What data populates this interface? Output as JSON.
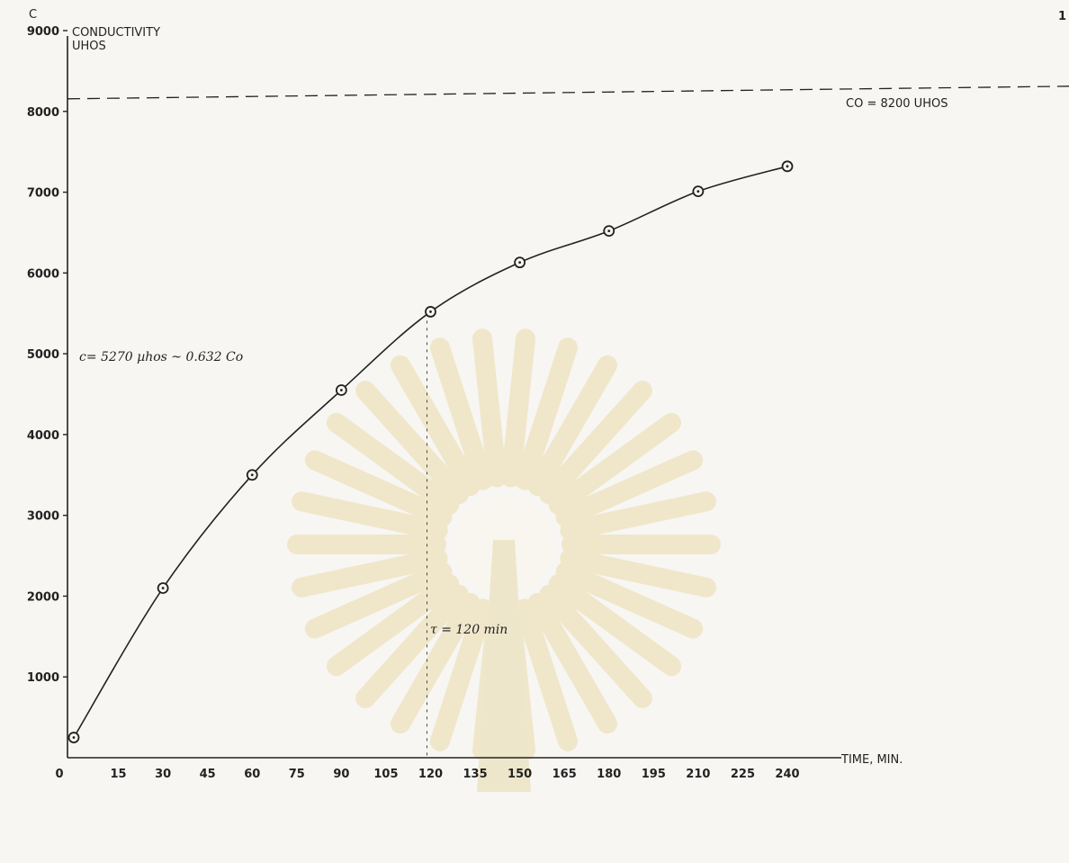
{
  "chart_data": {
    "type": "line",
    "y_symbol": "C",
    "ylabel_line1": "CONDUCTIVITY",
    "ylabel_line2": "UHOS",
    "xlabel": "TIME, MIN.",
    "x_ticks": [
      0,
      15,
      30,
      45,
      60,
      75,
      90,
      105,
      120,
      135,
      150,
      165,
      180,
      195,
      210,
      225,
      240
    ],
    "y_ticks": [
      1000,
      2000,
      3000,
      4000,
      5000,
      6000,
      7000,
      8000,
      9000
    ],
    "xlim": [
      0,
      240
    ],
    "ylim": [
      0,
      9000
    ],
    "grid": false,
    "series": [
      {
        "x": [
          0,
          30,
          60,
          90,
          120,
          150,
          180,
          210,
          240
        ],
        "y": [
          250,
          2100,
          3500,
          4550,
          5520,
          6130,
          6520,
          7010,
          7320
        ]
      }
    ],
    "reference_line": {
      "y": 8200,
      "label": "CO = 8200 UHOS"
    },
    "annotations": {
      "c_note": "c= 5270 µhos ~ 0.632 Co",
      "tau_note": "τ = 120 min"
    },
    "page_number": "1"
  }
}
